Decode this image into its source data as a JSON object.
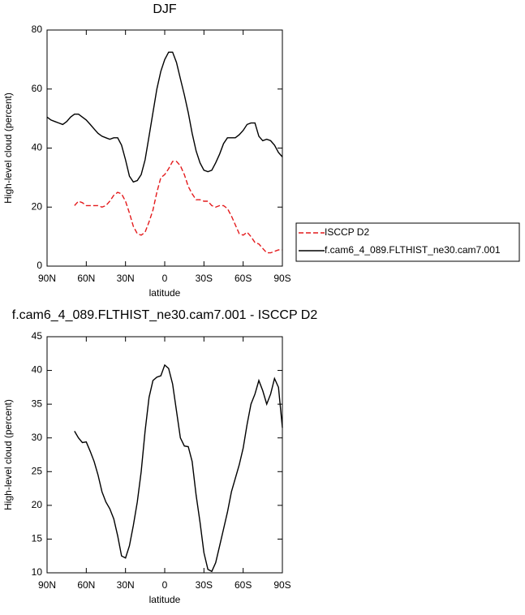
{
  "chart_data": [
    {
      "type": "line",
      "title": "DJF",
      "x_label": "latitude",
      "y_label": "High-level cloud (percent)",
      "x": [
        90,
        87,
        84,
        81,
        78,
        75,
        72,
        69,
        66,
        63,
        60,
        57,
        54,
        51,
        48,
        45,
        42,
        39,
        36,
        33,
        30,
        27,
        24,
        21,
        18,
        15,
        12,
        9,
        6,
        3,
        0,
        -3,
        -6,
        -9,
        -12,
        -15,
        -18,
        -21,
        -24,
        -27,
        -30,
        -33,
        -36,
        -39,
        -42,
        -45,
        -48,
        -51,
        -54,
        -57,
        -60,
        -63,
        -66,
        -69,
        -72,
        -75,
        -78,
        -81,
        -84,
        -87,
        -90
      ],
      "series": [
        {
          "name": "ISCCP D2",
          "color": "#e41a1c",
          "dash": true,
          "values": [
            null,
            null,
            null,
            null,
            null,
            null,
            null,
            20.5,
            22,
            21.5,
            20.5,
            20.5,
            20.5,
            20.5,
            20,
            20.5,
            22,
            24,
            25,
            24.5,
            22,
            18,
            13.5,
            11,
            10.5,
            11.5,
            15,
            19,
            25,
            30,
            31,
            33,
            35.5,
            35.5,
            34,
            31,
            27,
            24.5,
            22.5,
            22.5,
            22,
            22,
            20.5,
            20,
            20.5,
            20.5,
            19.5,
            17,
            14,
            11,
            10.5,
            11.5,
            10,
            8,
            7.5,
            6,
            4.5,
            4.5,
            5,
            5.5,
            5.5
          ]
        },
        {
          "name": "f.cam6_4_089.FLTHIST_ne30.cam7.001",
          "color": "#000000",
          "dash": false,
          "values": [
            50.5,
            49.5,
            49,
            48.5,
            48,
            49,
            50.5,
            51.5,
            51.5,
            50.5,
            49.5,
            48,
            46.5,
            45,
            44,
            43.5,
            43,
            43.5,
            43.5,
            41,
            36,
            30.5,
            28.5,
            29,
            31,
            36,
            44,
            52,
            60,
            66,
            70,
            72.5,
            72.5,
            69,
            63.5,
            58,
            52,
            45,
            39,
            35,
            32.5,
            32,
            32.5,
            35,
            38,
            41.5,
            43.5,
            43.5,
            43.5,
            44.5,
            46,
            48,
            48.5,
            48.5,
            44,
            42.5,
            43,
            42.5,
            41,
            38.5,
            37
          ]
        }
      ],
      "xlim": [
        90,
        -90
      ],
      "xticks": [
        {
          "value": 90,
          "label": "90N"
        },
        {
          "value": 60,
          "label": "60N"
        },
        {
          "value": 30,
          "label": "30N"
        },
        0,
        {
          "value": -30,
          "label": "30S"
        },
        {
          "value": -60,
          "label": "60S"
        },
        {
          "value": -90,
          "label": "90S"
        }
      ],
      "ylim": [
        0,
        80
      ],
      "yticks": [
        0,
        20,
        40,
        60,
        80
      ],
      "legend": "right"
    },
    {
      "type": "line",
      "title": "f.cam6_4_089.FLTHIST_ne30.cam7.001 - ISCCP D2",
      "x_label": "latitude",
      "y_label": "High-level cloud (percent)",
      "x": [
        90,
        87,
        84,
        81,
        78,
        75,
        72,
        69,
        66,
        63,
        60,
        57,
        54,
        51,
        48,
        45,
        42,
        39,
        36,
        33,
        30,
        27,
        24,
        21,
        18,
        15,
        12,
        9,
        6,
        3,
        0,
        -3,
        -6,
        -9,
        -12,
        -15,
        -18,
        -21,
        -24,
        -27,
        -30,
        -33,
        -36,
        -39,
        -42,
        -45,
        -48,
        -51,
        -54,
        -57,
        -60,
        -63,
        -66,
        -69,
        -72,
        -75,
        -78,
        -81,
        -84,
        -87,
        -90
      ],
      "series": [
        {
          "color": "#000000",
          "dash": false,
          "values": [
            null,
            null,
            null,
            null,
            null,
            null,
            null,
            31,
            30,
            29.3,
            29.4,
            28,
            26.5,
            24.5,
            22,
            20.5,
            19.5,
            18,
            15.5,
            12.5,
            12.2,
            14,
            17,
            20.5,
            25,
            31,
            36,
            38.5,
            39,
            39.2,
            40.8,
            40.3,
            38,
            34,
            30,
            28.8,
            28.7,
            26.5,
            21.5,
            17.5,
            13,
            10.5,
            10.2,
            11.5,
            14,
            16.5,
            19,
            22,
            24,
            26,
            28.5,
            32,
            35,
            36.5,
            38.5,
            37,
            35,
            36.5,
            38.8,
            37.5,
            31.5
          ]
        }
      ],
      "xlim": [
        90,
        -90
      ],
      "xticks": [
        {
          "value": 90,
          "label": "90N"
        },
        {
          "value": 60,
          "label": "60N"
        },
        {
          "value": 30,
          "label": "30N"
        },
        0,
        {
          "value": -30,
          "label": "30S"
        },
        {
          "value": -60,
          "label": "60S"
        },
        {
          "value": -90,
          "label": "90S"
        }
      ],
      "ylim": [
        10,
        45
      ],
      "yticks": [
        10,
        15,
        20,
        25,
        30,
        35,
        40,
        45
      ]
    }
  ]
}
